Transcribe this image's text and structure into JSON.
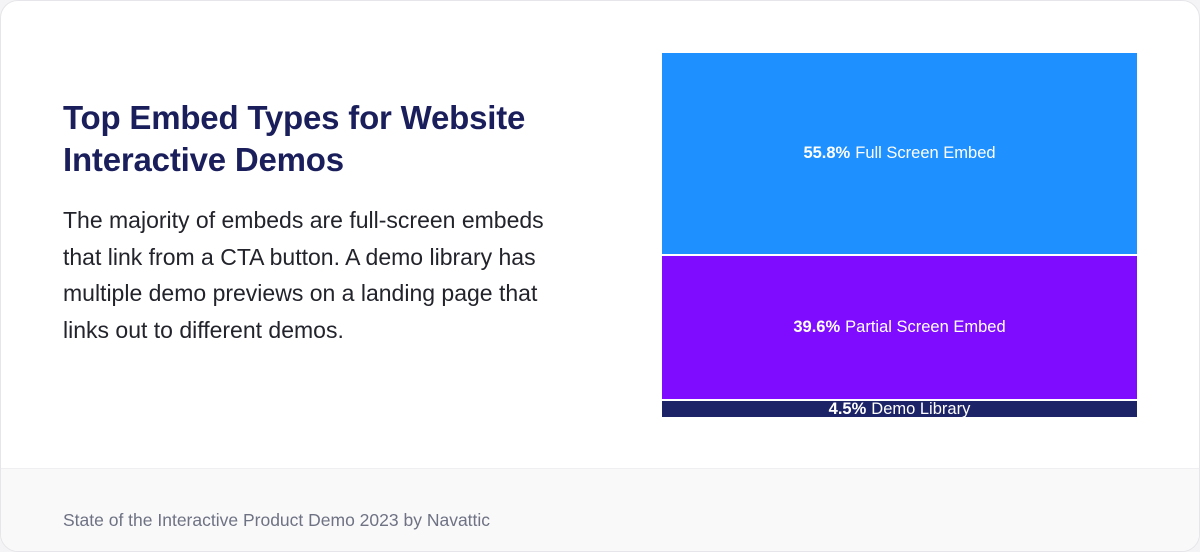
{
  "title": "Top Embed Types for Website Interactive Demos",
  "description": "The majority of embeds are full-screen embeds that link from a CTA button. A demo library has multiple demo previews on a landing page that links out to different demos.",
  "source": "State of the Interactive Product Demo 2023 by Navattic",
  "colors": {
    "full_screen": "#1e90ff",
    "partial_screen": "#800cff",
    "demo_library": "#1c2366",
    "title": "#1a1f5c"
  },
  "chart_data": {
    "type": "bar",
    "orientation": "stacked-vertical-100-percent",
    "title": "Top Embed Types for Website Interactive Demos",
    "unit": "%",
    "categories": [
      "Full Screen Embed",
      "Partial Screen Embed",
      "Demo Library"
    ],
    "values": [
      55.8,
      39.6,
      4.5
    ],
    "segments": [
      {
        "label": "Full Screen Embed",
        "value": 55.8,
        "value_text": "55.8%"
      },
      {
        "label": "Partial Screen Embed",
        "value": 39.6,
        "value_text": "39.6%"
      },
      {
        "label": "Demo Library",
        "value": 4.5,
        "value_text": "4.5%"
      }
    ]
  }
}
